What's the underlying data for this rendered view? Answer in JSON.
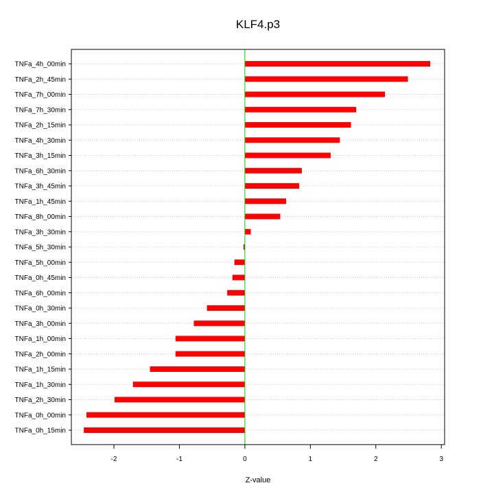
{
  "chart_data": {
    "type": "bar",
    "orientation": "horizontal",
    "title": "KLF4.p3",
    "xlabel": "Z-value",
    "ylabel": "",
    "xlim": [
      -2.65,
      3.05
    ],
    "xticks": [
      -2,
      -1,
      0,
      1,
      2,
      3
    ],
    "xtick_labels": [
      "-2",
      "-1",
      "0",
      "1",
      "2",
      "3"
    ],
    "grid": "horizontal dotted per category",
    "bar_color": "#ff0000",
    "zero_line_color": "#00cc00",
    "categories": [
      "TNFa_4h_00min",
      "TNFa_2h_45min",
      "TNFa_7h_00min",
      "TNFa_7h_30min",
      "TNFa_2h_15min",
      "TNFa_4h_30min",
      "TNFa_3h_15min",
      "TNFa_6h_30min",
      "TNFa_3h_45min",
      "TNFa_1h_45min",
      "TNFa_8h_00min",
      "TNFa_3h_30min",
      "TNFa_5h_30min",
      "TNFa_5h_00min",
      "TNFa_0h_45min",
      "TNFa_6h_00min",
      "TNFa_0h_30min",
      "TNFa_3h_00min",
      "TNFa_1h_00min",
      "TNFa_2h_00min",
      "TNFa_1h_15min",
      "TNFa_1h_30min",
      "TNFa_2h_30min",
      "TNFa_0h_00min",
      "TNFa_0h_15min"
    ],
    "values": [
      2.83,
      2.49,
      2.14,
      1.7,
      1.62,
      1.45,
      1.31,
      0.87,
      0.83,
      0.63,
      0.54,
      0.09,
      -0.02,
      -0.16,
      -0.19,
      -0.27,
      -0.58,
      -0.78,
      -1.06,
      -1.06,
      -1.45,
      -1.71,
      -1.99,
      -2.42,
      -2.46
    ]
  }
}
